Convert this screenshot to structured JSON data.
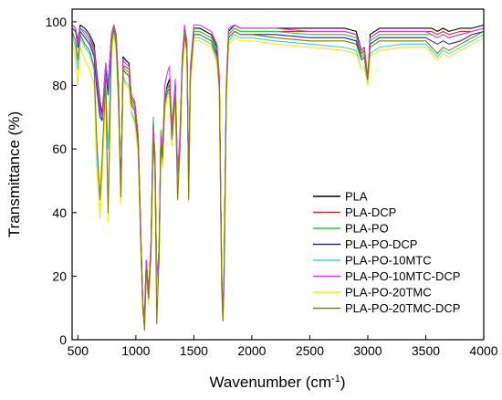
{
  "chart_data": {
    "type": "line",
    "xlabel": "Wavenumber (cm",
    "xlabel_sup": "-1",
    "xlabel_end": ")",
    "ylabel": "Transmittance (%)",
    "xlim": [
      450,
      4000
    ],
    "ylim": [
      0,
      104
    ],
    "xticks": [
      500,
      1000,
      1500,
      2000,
      2500,
      3000,
      3500,
      4000
    ],
    "yticks": [
      0,
      20,
      40,
      60,
      80,
      100
    ],
    "grid": false,
    "legend_position": "right",
    "x": [
      450,
      480,
      500,
      520,
      560,
      600,
      640,
      660,
      690,
      710,
      740,
      760,
      790,
      810,
      830,
      850,
      870,
      890,
      910,
      940,
      960,
      990,
      1020,
      1045,
      1060,
      1075,
      1090,
      1110,
      1130,
      1150,
      1165,
      1180,
      1200,
      1215,
      1230,
      1250,
      1270,
      1290,
      1310,
      1340,
      1360,
      1380,
      1400,
      1420,
      1440,
      1455,
      1470,
      1500,
      1550,
      1600,
      1650,
      1700,
      1720,
      1740,
      1750,
      1760,
      1780,
      1800,
      1850,
      1900,
      2000,
      2200,
      2500,
      2800,
      2900,
      2945,
      2970,
      3000,
      3020,
      3100,
      3300,
      3500,
      3550,
      3600,
      3650,
      3700,
      3800,
      3900,
      4000
    ],
    "series": [
      {
        "name": "PLA",
        "color": "#000000",
        "values": [
          99,
          98,
          94,
          99,
          98,
          96,
          93,
          85,
          75,
          71,
          87,
          80,
          96,
          99,
          96,
          80,
          46,
          89,
          88,
          87,
          77,
          75,
          64,
          30,
          11,
          8,
          25,
          15,
          30,
          68,
          58,
          19,
          28,
          64,
          60,
          76,
          80,
          82,
          66,
          80,
          52,
          63,
          88,
          98,
          93,
          50,
          85,
          98,
          98,
          97,
          96,
          92,
          82,
          20,
          7,
          20,
          80,
          97,
          99,
          98,
          98,
          98,
          98,
          98,
          97,
          91,
          92,
          82,
          96,
          98,
          98,
          98,
          98,
          97,
          98,
          97,
          98,
          98,
          99
        ]
      },
      {
        "name": "PLA-DCP",
        "color": "#c0392b",
        "values": [
          99,
          98,
          94,
          98,
          97,
          95,
          92,
          84,
          74,
          70,
          86,
          79,
          95,
          98,
          95,
          79,
          46,
          86,
          86,
          85,
          76,
          74,
          63,
          29,
          11,
          8,
          24,
          15,
          29,
          66,
          57,
          19,
          27,
          62,
          58,
          75,
          79,
          80,
          65,
          79,
          51,
          62,
          87,
          97,
          92,
          49,
          84,
          97,
          97,
          96,
          95,
          91,
          81,
          19,
          7,
          19,
          79,
          96,
          98,
          97,
          97,
          97,
          97,
          97,
          96,
          90,
          91,
          82,
          95,
          97,
          97,
          97,
          97,
          96,
          97,
          96,
          97,
          97,
          98
        ]
      },
      {
        "name": "PLA-PO",
        "color": "#2ecc40",
        "values": [
          98,
          97,
          93,
          98,
          96,
          94,
          90,
          82,
          72,
          69,
          85,
          78,
          95,
          98,
          95,
          78,
          45,
          86,
          85,
          84,
          75,
          73,
          62,
          28,
          10,
          7,
          23,
          14,
          28,
          70,
          56,
          18,
          27,
          66,
          61,
          77,
          79,
          81,
          64,
          78,
          50,
          61,
          86,
          97,
          92,
          48,
          83,
          97,
          97,
          96,
          95,
          91,
          80,
          19,
          7,
          19,
          79,
          96,
          98,
          97,
          97,
          97,
          96,
          96,
          95,
          89,
          90,
          81,
          94,
          96,
          96,
          96,
          96,
          95,
          96,
          95,
          96,
          97,
          98
        ]
      },
      {
        "name": "PLA-PO-DCP",
        "color": "#1f1fdc",
        "values": [
          98,
          97,
          92,
          97,
          95,
          93,
          89,
          80,
          70,
          69,
          86,
          77,
          94,
          97,
          94,
          77,
          44,
          85,
          84,
          83,
          74,
          72,
          61,
          27,
          10,
          6,
          22,
          13,
          27,
          64,
          55,
          17,
          26,
          59,
          55,
          74,
          78,
          79,
          63,
          77,
          50,
          60,
          86,
          96,
          91,
          47,
          83,
          96,
          96,
          95,
          94,
          90,
          79,
          18,
          6,
          18,
          78,
          95,
          97,
          96,
          96,
          96,
          95,
          95,
          94,
          88,
          89,
          81,
          93,
          95,
          95,
          95,
          94,
          93,
          94,
          93,
          94,
          96,
          97
        ]
      },
      {
        "name": "PLA-PO-10MTC",
        "color": "#3fd0e6",
        "values": [
          96,
          92,
          85,
          95,
          92,
          90,
          85,
          60,
          45,
          55,
          80,
          60,
          92,
          97,
          92,
          75,
          44,
          83,
          81,
          80,
          72,
          69,
          59,
          26,
          9,
          5,
          21,
          12,
          26,
          62,
          53,
          16,
          25,
          60,
          56,
          73,
          77,
          78,
          62,
          76,
          48,
          59,
          85,
          95,
          90,
          46,
          82,
          95,
          95,
          94,
          93,
          88,
          78,
          17,
          6,
          17,
          77,
          94,
          96,
          95,
          95,
          94,
          93,
          92,
          91,
          85,
          86,
          80,
          90,
          92,
          93,
          93,
          91,
          89,
          91,
          90,
          92,
          94,
          96
        ]
      },
      {
        "name": "PLA-PO-10MTC-DCP",
        "color": "#d63be6",
        "values": [
          99,
          98,
          93,
          98,
          97,
          95,
          91,
          83,
          73,
          70,
          87,
          80,
          96,
          99,
          96,
          79,
          46,
          88,
          87,
          86,
          77,
          75,
          64,
          30,
          11,
          8,
          25,
          15,
          30,
          67,
          58,
          19,
          29,
          64,
          60,
          80,
          84,
          86,
          67,
          82,
          53,
          64,
          89,
          99,
          94,
          51,
          86,
          99,
          99,
          98,
          97,
          93,
          83,
          21,
          8,
          21,
          81,
          98,
          99,
          98,
          98,
          98,
          97,
          97,
          96,
          91,
          92,
          83,
          95,
          97,
          97,
          97,
          96,
          95,
          96,
          95,
          96,
          97,
          98
        ]
      },
      {
        "name": "PLA-PO-20TMC",
        "color": "#f0e81b",
        "values": [
          94,
          88,
          80,
          92,
          88,
          85,
          80,
          55,
          38,
          50,
          78,
          37,
          90,
          96,
          90,
          72,
          43,
          82,
          80,
          79,
          71,
          68,
          58,
          25,
          9,
          4,
          20,
          11,
          25,
          60,
          52,
          15,
          24,
          58,
          54,
          72,
          76,
          77,
          61,
          75,
          47,
          58,
          84,
          94,
          89,
          45,
          80,
          94,
          94,
          93,
          92,
          87,
          77,
          16,
          6,
          16,
          76,
          93,
          95,
          94,
          94,
          93,
          92,
          91,
          90,
          85,
          86,
          80,
          89,
          91,
          92,
          92,
          90,
          88,
          90,
          89,
          91,
          93,
          95
        ]
      },
      {
        "name": "PLA-PO-20TMC-DCP",
        "color": "#808000",
        "values": [
          97,
          94,
          88,
          96,
          93,
          91,
          86,
          65,
          44,
          58,
          82,
          40,
          93,
          98,
          93,
          76,
          45,
          85,
          84,
          83,
          74,
          72,
          61,
          27,
          10,
          3,
          22,
          13,
          27,
          63,
          54,
          5,
          26,
          61,
          57,
          75,
          78,
          79,
          63,
          77,
          44,
          60,
          86,
          96,
          91,
          44,
          83,
          96,
          96,
          95,
          94,
          89,
          79,
          17,
          6,
          17,
          78,
          95,
          97,
          96,
          96,
          95,
          94,
          94,
          93,
          88,
          89,
          82,
          92,
          94,
          94,
          94,
          92,
          90,
          92,
          91,
          93,
          95,
          97
        ]
      }
    ]
  }
}
